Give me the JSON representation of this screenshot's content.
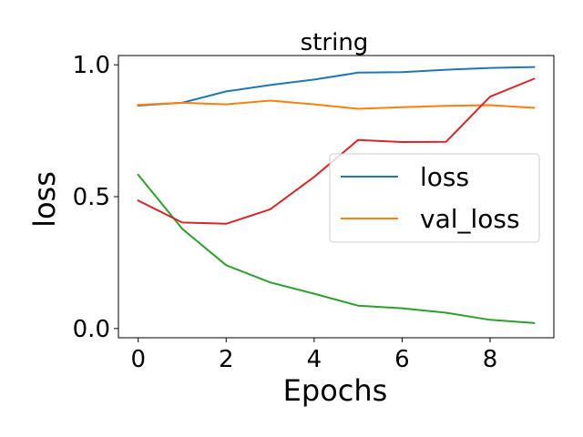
{
  "chart_data": {
    "type": "line",
    "title": "string",
    "xlabel": "Epochs",
    "ylabel": "loss",
    "xlim": [
      -0.45,
      9.45
    ],
    "ylim": [
      -0.035,
      1.035
    ],
    "xticks": [
      0,
      2,
      4,
      6,
      8
    ],
    "xtick_labels": [
      "0",
      "2",
      "4",
      "6",
      "8"
    ],
    "yticks": [
      0.0,
      0.5,
      1.0
    ],
    "ytick_labels": [
      "0.0",
      "0.5",
      "1.0"
    ],
    "grid": false,
    "legend_position": "center-right",
    "x": [
      0,
      1,
      2,
      3,
      4,
      5,
      6,
      7,
      8,
      9
    ],
    "series": [
      {
        "name": "loss",
        "color": "#1f77b4",
        "in_legend": true,
        "values": [
          0.845,
          0.856,
          0.899,
          0.923,
          0.944,
          0.97,
          0.972,
          0.981,
          0.988,
          0.991
        ]
      },
      {
        "name": "val_loss",
        "color": "#ff7f0e",
        "in_legend": true,
        "values": [
          0.848,
          0.856,
          0.85,
          0.864,
          0.85,
          0.833,
          0.839,
          0.844,
          0.847,
          0.837
        ]
      },
      {
        "name": "",
        "color": "#2ca02c",
        "in_legend": false,
        "values": [
          0.583,
          0.378,
          0.24,
          0.175,
          0.132,
          0.087,
          0.077,
          0.06,
          0.033,
          0.021
        ]
      },
      {
        "name": "",
        "color": "#d62728",
        "in_legend": false,
        "values": [
          0.485,
          0.402,
          0.397,
          0.452,
          0.575,
          0.715,
          0.707,
          0.708,
          0.879,
          0.947
        ]
      }
    ]
  }
}
